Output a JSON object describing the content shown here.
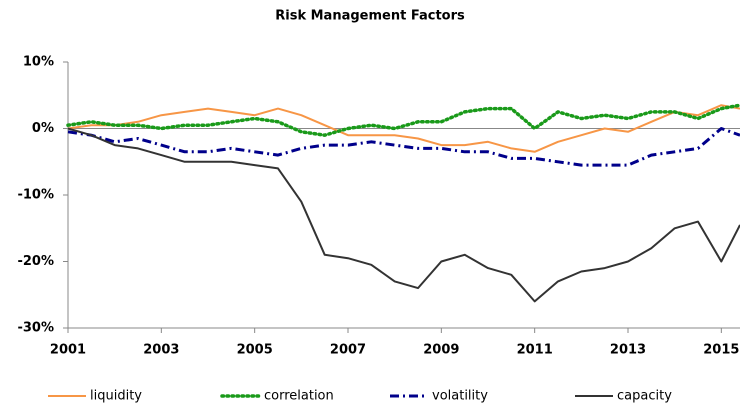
{
  "chart_data": {
    "type": "line",
    "title": "Risk Management Factors",
    "x": [
      2001,
      2001.5,
      2002,
      2002.5,
      2003,
      2003.5,
      2004,
      2004.5,
      2005,
      2005.5,
      2006,
      2006.5,
      2007,
      2007.5,
      2008,
      2008.5,
      2009,
      2009.5,
      2010,
      2010.5,
      2011,
      2011.5,
      2012,
      2012.5,
      2013,
      2013.5,
      2014,
      2014.5,
      2015,
      2015.4
    ],
    "series": [
      {
        "name": "liquidity",
        "color": "#f79646",
        "dash": "solid",
        "values": [
          0,
          0.5,
          0.5,
          1,
          2,
          2.5,
          3,
          2.5,
          2,
          3,
          2,
          0.5,
          -1,
          -1,
          -1,
          -1.5,
          -2.5,
          -2.5,
          -2,
          -3,
          -3.5,
          -2,
          -1,
          0,
          -0.5,
          1,
          2.5,
          2,
          3.5,
          3
        ]
      },
      {
        "name": "correlation",
        "color": "#1a9a1a",
        "dash": "dotted",
        "values": [
          0.5,
          1,
          0.5,
          0.5,
          0,
          0.5,
          0.5,
          1,
          1.5,
          1,
          -0.5,
          -1,
          0,
          0.5,
          0,
          1,
          1,
          2.5,
          3,
          3,
          0,
          2.5,
          1.5,
          2,
          1.5,
          2.5,
          2.5,
          1.5,
          3,
          3.5
        ]
      },
      {
        "name": "volatility",
        "color": "#00008b",
        "dash": "dashdot",
        "values": [
          -0.5,
          -1,
          -2,
          -1.5,
          -2.5,
          -3.5,
          -3.5,
          -3,
          -3.5,
          -4,
          -3,
          -2.5,
          -2.5,
          -2,
          -2.5,
          -3,
          -3,
          -3.5,
          -3.5,
          -4.5,
          -4.5,
          -5,
          -5.5,
          -5.5,
          -5.5,
          -4,
          -3.5,
          -3,
          0,
          -1
        ]
      },
      {
        "name": "capacity",
        "color": "#333333",
        "dash": "solid",
        "values": [
          0,
          -1,
          -2.5,
          -3,
          -4,
          -5,
          -5,
          -5,
          -5.5,
          -6,
          -11,
          -19,
          -19.5,
          -20.5,
          -23,
          -24,
          -20,
          -19,
          -21,
          -22,
          -26,
          -23,
          -21.5,
          -21,
          -20,
          -18,
          -15,
          -14,
          -20,
          -14.5
        ]
      }
    ],
    "xlim": [
      2001,
      2015.4
    ],
    "xticks": [
      2001,
      2003,
      2005,
      2007,
      2009,
      2011,
      2013,
      2015
    ],
    "ylim": [
      -30,
      10
    ],
    "yticks": [
      {
        "value": 10,
        "label": "10%"
      },
      {
        "value": 0,
        "label": "0%"
      },
      {
        "value": -10,
        "label": "-10%"
      },
      {
        "value": -20,
        "label": "-20%"
      },
      {
        "value": -30,
        "label": "-30%"
      }
    ],
    "grid": false
  }
}
